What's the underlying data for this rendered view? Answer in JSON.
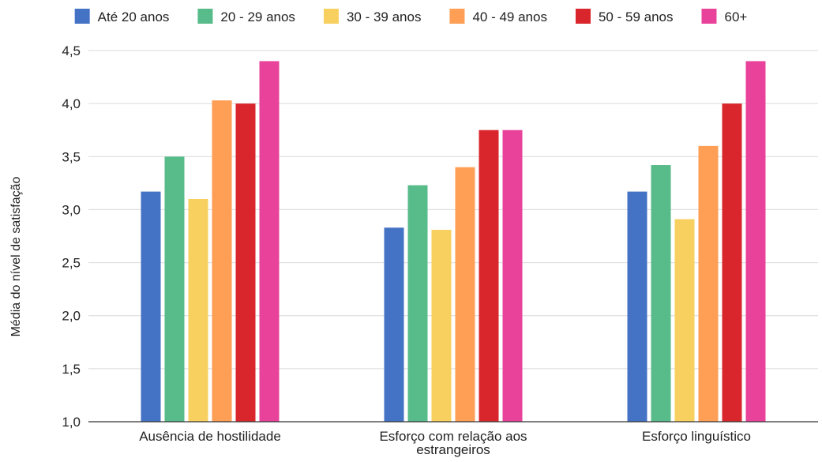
{
  "chart_data": {
    "type": "bar",
    "ylabel": "Média do nível de satisfação",
    "ylim": [
      1.0,
      4.5
    ],
    "yticks": [
      "1,0",
      "1,5",
      "2,0",
      "2,5",
      "3,0",
      "3,5",
      "4,0",
      "4,5"
    ],
    "grid": true,
    "legend_position": "top",
    "categories": [
      [
        "Ausência de hostilidade"
      ],
      [
        "Esforço com relação aos",
        "estrangeiros"
      ],
      [
        "Esforço linguístico"
      ]
    ],
    "series": [
      {
        "name": "Até 20 anos",
        "color": "#4472C4",
        "values": [
          3.17,
          2.83,
          3.17
        ]
      },
      {
        "name": "20 - 29 anos",
        "color": "#57BB8A",
        "values": [
          3.5,
          3.23,
          3.42
        ]
      },
      {
        "name": "30 - 39 anos",
        "color": "#F7D060",
        "values": [
          3.1,
          2.81,
          2.91
        ]
      },
      {
        "name": "40 - 49 anos",
        "color": "#FF9E55",
        "values": [
          4.03,
          3.4,
          3.6
        ]
      },
      {
        "name": "50 - 59 anos",
        "color": "#D9262C",
        "values": [
          4.0,
          3.75,
          4.0
        ]
      },
      {
        "name": "60+",
        "color": "#E8429A",
        "values": [
          4.4,
          3.75,
          4.4
        ]
      }
    ]
  }
}
